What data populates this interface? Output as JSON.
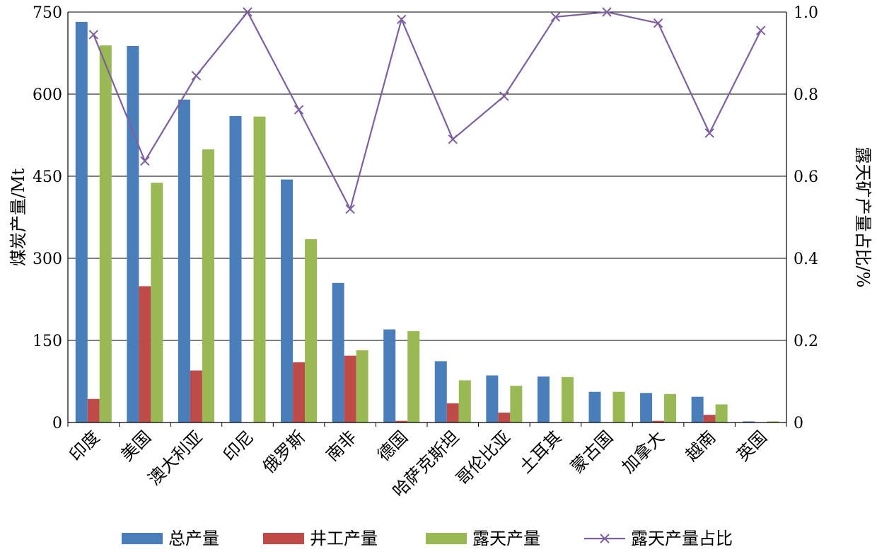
{
  "chart_data": {
    "type": "bar",
    "categories": [
      "印度",
      "美国",
      "澳大利亚",
      "印尼",
      "俄罗斯",
      "南非",
      "德国",
      "哈萨克斯坦",
      "哥伦比亚",
      "土耳其",
      "蒙古国",
      "加拿大",
      "越南",
      "英国"
    ],
    "series": [
      {
        "name": "总产量",
        "axis": "left",
        "kind": "bar",
        "color": "#4a7ebb",
        "values": [
          732,
          688,
          590,
          560,
          444,
          255,
          170,
          112,
          86,
          84,
          56,
          54,
          47,
          2
        ]
      },
      {
        "name": "井工产量",
        "axis": "left",
        "kind": "bar",
        "color": "#be4b48",
        "values": [
          43,
          249,
          95,
          0,
          110,
          122,
          3,
          35,
          18,
          0,
          0,
          3,
          14,
          0
        ]
      },
      {
        "name": "露天产量",
        "axis": "left",
        "kind": "bar",
        "color": "#98b954",
        "values": [
          689,
          438,
          499,
          559,
          335,
          132,
          167,
          77,
          67,
          83,
          56,
          52,
          33,
          2
        ]
      },
      {
        "name": "露天产量占比",
        "axis": "right",
        "kind": "line",
        "color": "#7d60a0",
        "marker": "x",
        "values": [
          0.945,
          0.637,
          0.845,
          1.0,
          0.762,
          0.52,
          0.982,
          0.69,
          0.795,
          0.988,
          1.0,
          0.973,
          0.705,
          0.955
        ]
      }
    ],
    "ylabel_left": "煤炭产量/Mt",
    "ylabel_right": "露天矿产量占比/%",
    "ylim_left": [
      0,
      750
    ],
    "ylim_right": [
      0,
      1.0
    ],
    "yticks_left": [
      "0",
      "150",
      "300",
      "450",
      "600",
      "750"
    ],
    "yticks_right": [
      "0",
      "0.2",
      "0.4",
      "0.6",
      "0.8",
      "1.0"
    ],
    "grid": true,
    "legend_position": "bottom"
  }
}
